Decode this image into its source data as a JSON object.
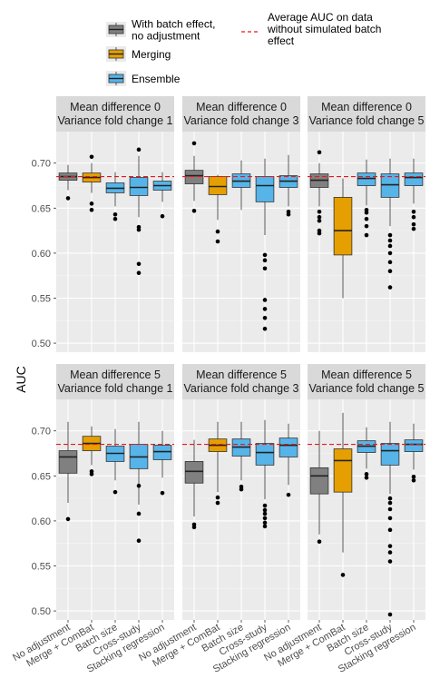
{
  "chart_data": {
    "type": "boxplot",
    "ylabel": "AUC",
    "ylim": [
      0.49,
      0.735
    ],
    "yticks": [
      0.5,
      0.55,
      0.6,
      0.65,
      0.7
    ],
    "ytick_labels": [
      "0.50",
      "0.55",
      "0.60",
      "0.65",
      "0.70"
    ],
    "reference_line": {
      "value": 0.685,
      "color": "#e41a1c",
      "style": "dashed"
    },
    "categories": [
      "No adjustment",
      "Merge + ComBat",
      "Batch size",
      "Cross-study",
      "Stacking regression"
    ],
    "groups": [
      {
        "name": "With batch effect,\nno adjustment",
        "color": "#808080"
      },
      {
        "name": "Merging",
        "color": "#e69f00"
      },
      {
        "name": "Ensemble",
        "color": "#56b4e9"
      }
    ],
    "category_group": [
      0,
      1,
      2,
      2,
      2
    ],
    "legend": {
      "entries": [
        {
          "lines": [
            "With batch effect,",
            "no adjustment"
          ],
          "color": "#808080"
        },
        {
          "lines": [
            "Merging"
          ],
          "color": "#e69f00"
        },
        {
          "lines": [
            "Ensemble"
          ],
          "color": "#56b4e9"
        }
      ],
      "line_entry": {
        "lines": [
          "Average AUC on data",
          "without simulated batch",
          "effect"
        ],
        "color": "#e41a1c"
      }
    },
    "panels": [
      {
        "strip": [
          "Mean difference 0",
          "Variance fold change 1"
        ],
        "boxes": [
          {
            "q1": 0.681,
            "median": 0.685,
            "q3": 0.689,
            "whislo": 0.67,
            "whishi": 0.698,
            "fliers": [
              0.661
            ]
          },
          {
            "q1": 0.679,
            "median": 0.684,
            "q3": 0.689,
            "whislo": 0.667,
            "whishi": 0.7,
            "fliers": [
              0.648,
              0.655,
              0.707
            ]
          },
          {
            "q1": 0.667,
            "median": 0.672,
            "q3": 0.678,
            "whislo": 0.652,
            "whishi": 0.69,
            "fliers": [
              0.638,
              0.643
            ]
          },
          {
            "q1": 0.664,
            "median": 0.673,
            "q3": 0.684,
            "whislo": 0.64,
            "whishi": 0.708,
            "fliers": [
              0.578,
              0.588,
              0.626,
              0.629,
              0.715
            ]
          },
          {
            "q1": 0.67,
            "median": 0.675,
            "q3": 0.68,
            "whislo": 0.657,
            "whishi": 0.69,
            "fliers": [
              0.641
            ]
          }
        ]
      },
      {
        "strip": [
          "Mean difference 0",
          "Variance fold change 3"
        ],
        "boxes": [
          {
            "q1": 0.677,
            "median": 0.686,
            "q3": 0.692,
            "whislo": 0.658,
            "whishi": 0.708,
            "fliers": [
              0.647,
              0.722
            ]
          },
          {
            "q1": 0.665,
            "median": 0.674,
            "q3": 0.685,
            "whislo": 0.637,
            "whishi": 0.687,
            "fliers": [
              0.613,
              0.624
            ]
          },
          {
            "q1": 0.673,
            "median": 0.68,
            "q3": 0.688,
            "whislo": 0.648,
            "whishi": 0.703,
            "fliers": []
          },
          {
            "q1": 0.657,
            "median": 0.675,
            "q3": 0.685,
            "whislo": 0.62,
            "whishi": 0.705,
            "fliers": [
              0.516,
              0.528,
              0.538,
              0.548,
              0.583,
              0.592,
              0.598
            ]
          },
          {
            "q1": 0.673,
            "median": 0.68,
            "q3": 0.686,
            "whislo": 0.652,
            "whishi": 0.709,
            "fliers": [
              0.643,
              0.646
            ]
          }
        ]
      },
      {
        "strip": [
          "Mean difference 0",
          "Variance fold change 5"
        ],
        "boxes": [
          {
            "q1": 0.673,
            "median": 0.681,
            "q3": 0.688,
            "whislo": 0.652,
            "whishi": 0.7,
            "fliers": [
              0.622,
              0.625,
              0.636,
              0.64,
              0.646,
              0.712
            ]
          },
          {
            "q1": 0.598,
            "median": 0.625,
            "q3": 0.662,
            "whislo": 0.55,
            "whishi": 0.683,
            "fliers": []
          },
          {
            "q1": 0.675,
            "median": 0.683,
            "q3": 0.689,
            "whislo": 0.653,
            "whishi": 0.704,
            "fliers": [
              0.62,
              0.63,
              0.638,
              0.645,
              0.648
            ]
          },
          {
            "q1": 0.662,
            "median": 0.676,
            "q3": 0.688,
            "whislo": 0.63,
            "whishi": 0.705,
            "fliers": [
              0.562,
              0.58,
              0.59,
              0.6,
              0.608,
              0.614,
              0.62
            ]
          },
          {
            "q1": 0.675,
            "median": 0.684,
            "q3": 0.689,
            "whislo": 0.655,
            "whishi": 0.705,
            "fliers": [
              0.627,
              0.632,
              0.64,
              0.646
            ]
          }
        ]
      },
      {
        "strip": [
          "Mean difference 5",
          "Variance fold change 1"
        ],
        "boxes": [
          {
            "q1": 0.653,
            "median": 0.671,
            "q3": 0.678,
            "whislo": 0.62,
            "whishi": 0.71,
            "fliers": [
              0.602
            ]
          },
          {
            "q1": 0.678,
            "median": 0.686,
            "q3": 0.694,
            "whislo": 0.662,
            "whishi": 0.705,
            "fliers": [
              0.652,
              0.655
            ]
          },
          {
            "q1": 0.666,
            "median": 0.675,
            "q3": 0.683,
            "whislo": 0.645,
            "whishi": 0.702,
            "fliers": [
              0.632
            ]
          },
          {
            "q1": 0.658,
            "median": 0.671,
            "q3": 0.685,
            "whislo": 0.618,
            "whishi": 0.71,
            "fliers": [
              0.578,
              0.608,
              0.639
            ]
          },
          {
            "q1": 0.668,
            "median": 0.677,
            "q3": 0.684,
            "whislo": 0.648,
            "whishi": 0.7,
            "fliers": [
              0.631
            ]
          }
        ]
      },
      {
        "strip": [
          "Mean difference 5",
          "Variance fold change 3"
        ],
        "boxes": [
          {
            "q1": 0.642,
            "median": 0.655,
            "q3": 0.666,
            "whislo": 0.605,
            "whishi": 0.69,
            "fliers": [
              0.593,
              0.596
            ]
          },
          {
            "q1": 0.677,
            "median": 0.684,
            "q3": 0.691,
            "whislo": 0.632,
            "whishi": 0.71,
            "fliers": [
              0.62,
              0.626
            ]
          },
          {
            "q1": 0.672,
            "median": 0.682,
            "q3": 0.691,
            "whislo": 0.645,
            "whishi": 0.71,
            "fliers": [
              0.635,
              0.638
            ]
          },
          {
            "q1": 0.662,
            "median": 0.676,
            "q3": 0.686,
            "whislo": 0.624,
            "whishi": 0.712,
            "fliers": [
              0.594,
              0.598,
              0.603,
              0.608,
              0.612,
              0.617
            ]
          },
          {
            "q1": 0.671,
            "median": 0.684,
            "q3": 0.692,
            "whislo": 0.64,
            "whishi": 0.708,
            "fliers": [
              0.629
            ]
          }
        ]
      },
      {
        "strip": [
          "Mean difference 5",
          "Variance fold change 5"
        ],
        "boxes": [
          {
            "q1": 0.63,
            "median": 0.65,
            "q3": 0.659,
            "whislo": 0.585,
            "whishi": 0.7,
            "fliers": [
              0.577
            ]
          },
          {
            "q1": 0.632,
            "median": 0.667,
            "q3": 0.68,
            "whislo": 0.565,
            "whishi": 0.72,
            "fliers": [
              0.54
            ]
          },
          {
            "q1": 0.676,
            "median": 0.683,
            "q3": 0.689,
            "whislo": 0.658,
            "whishi": 0.704,
            "fliers": [
              0.648,
              0.652
            ]
          },
          {
            "q1": 0.662,
            "median": 0.678,
            "q3": 0.686,
            "whislo": 0.63,
            "whishi": 0.71,
            "fliers": [
              0.496,
              0.555,
              0.565,
              0.572,
              0.59,
              0.603,
              0.613,
              0.62,
              0.625
            ]
          },
          {
            "q1": 0.677,
            "median": 0.685,
            "q3": 0.69,
            "whislo": 0.657,
            "whishi": 0.708,
            "fliers": [
              0.645,
              0.649
            ]
          }
        ]
      }
    ]
  }
}
